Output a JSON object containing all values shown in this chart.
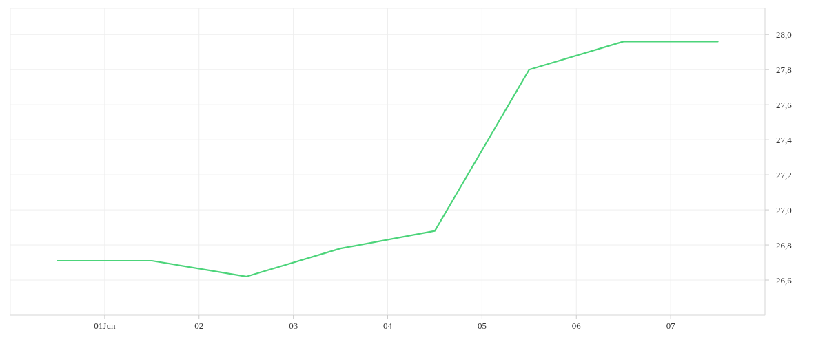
{
  "chart_data": {
    "type": "line",
    "x": [
      0.5,
      1.5,
      2.5,
      3.5,
      4.5,
      5.5,
      6.5,
      7.5
    ],
    "series": [
      {
        "color": "#4cd47a",
        "values": [
          26.71,
          26.71,
          26.62,
          26.78,
          26.88,
          27.8,
          27.96,
          27.96
        ]
      }
    ],
    "xlim": [
      0,
      8
    ],
    "xticks": [
      {
        "value": 1,
        "label": "01Jun"
      },
      {
        "value": 2,
        "label": "02"
      },
      {
        "value": 3,
        "label": "03"
      },
      {
        "value": 4,
        "label": "04"
      },
      {
        "value": 5,
        "label": "05"
      },
      {
        "value": 6,
        "label": "06"
      },
      {
        "value": 7,
        "label": "07"
      }
    ],
    "ylim": [
      26.4,
      28.15
    ],
    "yticks": [
      {
        "value": 26.6,
        "label": "26,6"
      },
      {
        "value": 26.8,
        "label": "26,8"
      },
      {
        "value": 27,
        "label": "27,0"
      },
      {
        "value": 27.2,
        "label": "27,2"
      },
      {
        "value": 27.4,
        "label": "27,4"
      },
      {
        "value": 27.6,
        "label": "27,6"
      },
      {
        "value": 27.8,
        "label": "27,8"
      },
      {
        "value": 28,
        "label": "28,0"
      }
    ],
    "grid": true,
    "marker": "none",
    "line_style": "solid"
  }
}
